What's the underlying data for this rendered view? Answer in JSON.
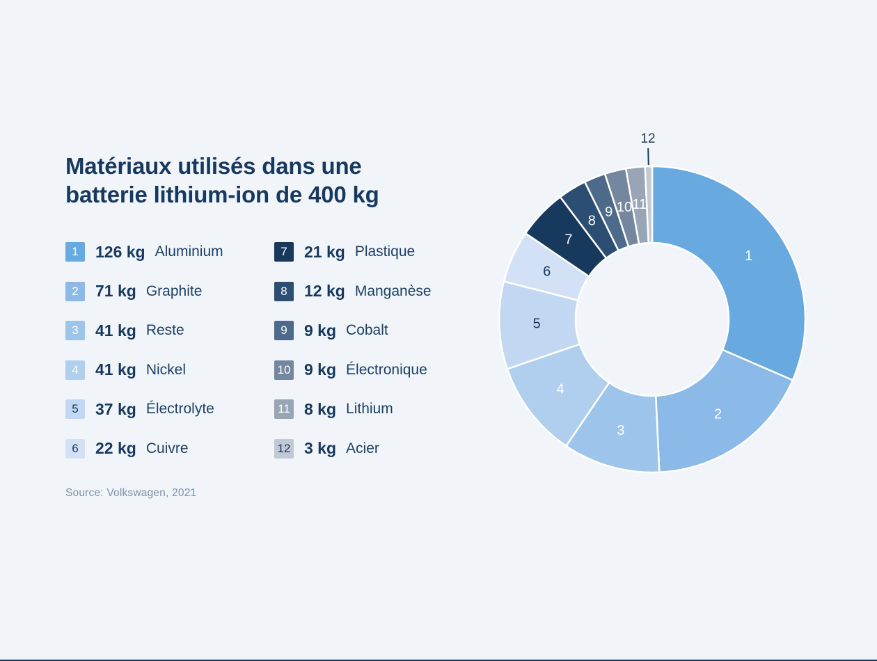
{
  "page": {
    "background": "#f1f5fa",
    "footer_bar_color": "#17395f",
    "accent_navy": "#17395f"
  },
  "title": {
    "line1": "Matériaux utilisés dans une",
    "line2": "batterie lithium-ion de 400 kg"
  },
  "source": {
    "text": "Source: Volkswagen, 2021"
  },
  "legend": {
    "items": [
      {
        "num": "1",
        "value": "126 kg",
        "label": "Aluminium",
        "badge_bg": "#68a9e0",
        "badge_fg": "#ffffff"
      },
      {
        "num": "2",
        "value": "71 kg",
        "label": "Graphite",
        "badge_bg": "#8bbae8",
        "badge_fg": "#ffffff"
      },
      {
        "num": "3",
        "value": "41 kg",
        "label": "Reste",
        "badge_bg": "#9dc4ea",
        "badge_fg": "#ffffff"
      },
      {
        "num": "4",
        "value": "41 kg",
        "label": "Nickel",
        "badge_bg": "#b0ceee",
        "badge_fg": "#ffffff"
      },
      {
        "num": "5",
        "value": "37 kg",
        "label": "Électrolyte",
        "badge_bg": "#c2d8f2",
        "badge_fg": "#17395f"
      },
      {
        "num": "6",
        "value": "22 kg",
        "label": "Cuivre",
        "badge_bg": "#d3e1f6",
        "badge_fg": "#17395f"
      },
      {
        "num": "7",
        "value": "21 kg",
        "label": "Plastique",
        "badge_bg": "#17395e",
        "badge_fg": "#ffffff"
      },
      {
        "num": "8",
        "value": "12 kg",
        "label": "Manganèse",
        "badge_bg": "#2c4e73",
        "badge_fg": "#ffffff"
      },
      {
        "num": "9",
        "value": "9 kg",
        "label": "Cobalt",
        "badge_bg": "#4d6a8a",
        "badge_fg": "#ffffff"
      },
      {
        "num": "10",
        "value": "9 kg",
        "label": "Électronique",
        "badge_bg": "#74879f",
        "badge_fg": "#ffffff"
      },
      {
        "num": "11",
        "value": "8 kg",
        "label": "Lithium",
        "badge_bg": "#98a5b6",
        "badge_fg": "#ffffff"
      },
      {
        "num": "12",
        "value": "3 kg",
        "label": "Acier",
        "badge_bg": "#c0c9d4",
        "badge_fg": "#17395f"
      }
    ]
  },
  "chart_data": {
    "type": "pie",
    "subtype": "donut",
    "title": "Matériaux utilisés dans une batterie lithium-ion de 400 kg",
    "unit": "kg",
    "total": 400,
    "start_angle_deg": 0,
    "direction": "clockwise",
    "donut_hole_ratio": 0.5,
    "categories": [
      "Aluminium",
      "Graphite",
      "Reste",
      "Nickel",
      "Électrolyte",
      "Cuivre",
      "Plastique",
      "Manganèse",
      "Cobalt",
      "Électronique",
      "Lithium",
      "Acier"
    ],
    "values": [
      126,
      71,
      41,
      41,
      37,
      22,
      21,
      12,
      9,
      9,
      8,
      3
    ],
    "segment_numbers": [
      "1",
      "2",
      "3",
      "4",
      "5",
      "6",
      "7",
      "8",
      "9",
      "10",
      "11",
      "12"
    ],
    "colors": [
      "#68a9e0",
      "#8bbae8",
      "#9dc4ea",
      "#b0ceee",
      "#c2d8f2",
      "#d3e1f6",
      "#17395e",
      "#2c4e73",
      "#4d6a8a",
      "#74879f",
      "#98a5b6",
      "#c0c9d4"
    ],
    "inside_label_colors": [
      "#ffffff",
      "#ffffff",
      "#ffffff",
      "#ffffff",
      "#17395f",
      "#17395f",
      "#ffffff",
      "#ffffff",
      "#ffffff",
      "#ffffff",
      "#ffffff",
      null
    ],
    "outside_label_segments": [
      "12"
    ],
    "callout_color": "#17395f",
    "legend_position": "left",
    "grid": false
  }
}
